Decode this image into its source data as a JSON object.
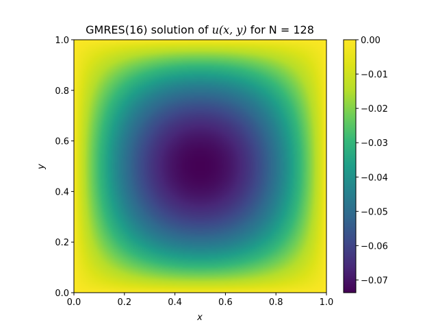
{
  "chart_data": {
    "type": "heatmap",
    "title": "GMRES(16) solution of ",
    "title_math": "u(x, y)",
    "title_suffix": " for N = 128",
    "xlabel": "x",
    "ylabel": "y",
    "xlim": [
      0.0,
      1.0
    ],
    "ylim": [
      0.0,
      1.0
    ],
    "xticks": [
      "0.0",
      "0.2",
      "0.4",
      "0.6",
      "0.8",
      "1.0"
    ],
    "yticks": [
      "0.0",
      "0.2",
      "0.4",
      "0.6",
      "0.8",
      "1.0"
    ],
    "grid_n": 128,
    "value_range": [
      -0.0737,
      0.0
    ],
    "min_value": -0.0737,
    "min_location": [
      0.5,
      0.5
    ],
    "colormap": "viridis",
    "colorbar": {
      "range": [
        -0.0737,
        0.0
      ],
      "ticks": [
        "0.00",
        "−0.01",
        "−0.02",
        "−0.03",
        "−0.04",
        "−0.05",
        "−0.06",
        "−0.07"
      ],
      "tick_values": [
        0.0,
        -0.01,
        -0.02,
        -0.03,
        -0.04,
        -0.05,
        -0.06,
        -0.07
      ]
    },
    "grid": false
  }
}
